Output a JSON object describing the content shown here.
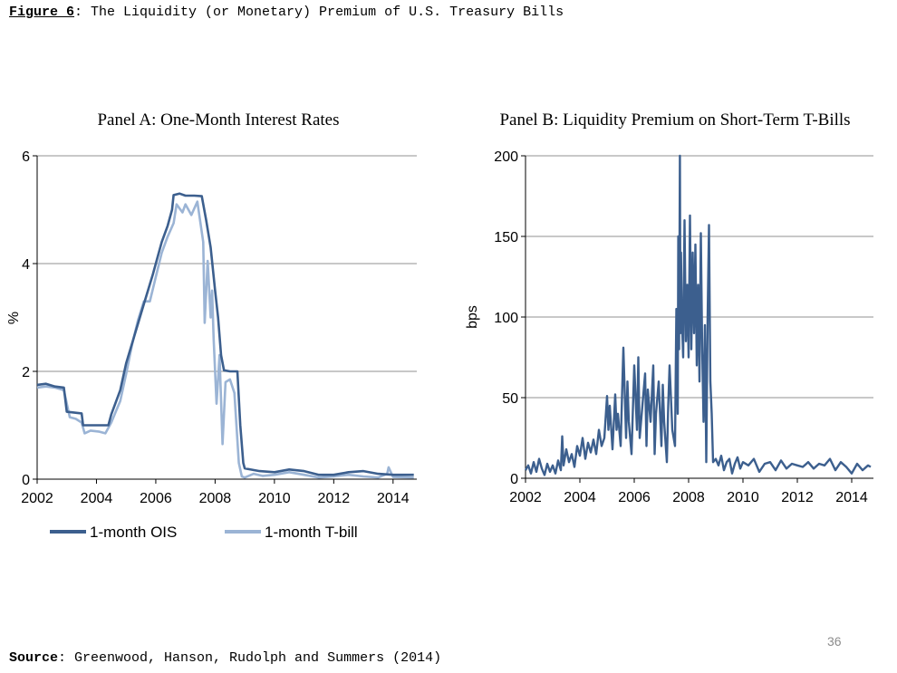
{
  "figure": {
    "label": "Figure 6",
    "title": ": The Liquidity (or Monetary) Premium of U.S. Treasury Bills"
  },
  "source": {
    "label": "Source",
    "text": ": Greenwood, Hanson, Rudolph and Summers (2014)"
  },
  "page_number": "36",
  "colors": {
    "ois": "#3c5f8e",
    "tbill": "#9bb4d5",
    "premium": "#3c5f8e",
    "grid": "#a6a6a6"
  },
  "chart_data": [
    {
      "type": "line",
      "title": "Panel A: One-Month Interest Rates",
      "xlabel": "",
      "ylabel": "%",
      "xlim": [
        2002,
        2014.8
      ],
      "ylim": [
        0,
        6
      ],
      "xticks": [
        "2002",
        "2004",
        "2006",
        "2008",
        "2010",
        "2012",
        "2014"
      ],
      "yticks": [
        "0",
        "2",
        "4",
        "6"
      ],
      "grid": true,
      "legend": "bottom",
      "series": [
        {
          "name": "1-month OIS",
          "x": [
            2002.0,
            2002.3,
            2002.6,
            2002.9,
            2003.0,
            2003.5,
            2003.55,
            2004.4,
            2004.5,
            2004.8,
            2005.0,
            2005.3,
            2005.6,
            2005.9,
            2006.2,
            2006.4,
            2006.55,
            2006.6,
            2006.8,
            2007.0,
            2007.3,
            2007.55,
            2007.7,
            2007.85,
            2008.0,
            2008.1,
            2008.2,
            2008.3,
            2008.5,
            2008.75,
            2008.85,
            2008.95,
            2009.0,
            2009.5,
            2010.0,
            2010.5,
            2011.0,
            2011.5,
            2012.0,
            2012.5,
            2013.0,
            2013.5,
            2014.0,
            2014.7
          ],
          "y": [
            1.75,
            1.77,
            1.72,
            1.7,
            1.25,
            1.22,
            1.0,
            1.0,
            1.2,
            1.65,
            2.15,
            2.7,
            3.25,
            3.8,
            4.4,
            4.7,
            5.0,
            5.27,
            5.3,
            5.26,
            5.26,
            5.25,
            4.8,
            4.3,
            3.5,
            3.0,
            2.3,
            2.02,
            2.0,
            2.0,
            1.0,
            0.3,
            0.2,
            0.15,
            0.13,
            0.18,
            0.15,
            0.08,
            0.08,
            0.13,
            0.15,
            0.1,
            0.08,
            0.08
          ]
        },
        {
          "name": "1-month T-bill",
          "x": [
            2002.0,
            2002.3,
            2002.6,
            2002.9,
            2003.1,
            2003.3,
            2003.5,
            2003.6,
            2003.8,
            2004.1,
            2004.3,
            2004.5,
            2004.8,
            2005.0,
            2005.2,
            2005.4,
            2005.6,
            2005.8,
            2006.0,
            2006.2,
            2006.4,
            2006.6,
            2006.7,
            2006.9,
            2007.0,
            2007.2,
            2007.4,
            2007.6,
            2007.65,
            2007.75,
            2007.85,
            2007.9,
            2007.95,
            2008.05,
            2008.15,
            2008.25,
            2008.35,
            2008.5,
            2008.65,
            2008.8,
            2008.9,
            2009.0,
            2009.3,
            2009.6,
            2010.0,
            2010.5,
            2011.0,
            2011.5,
            2012.0,
            2012.5,
            2013.0,
            2013.5,
            2013.8,
            2013.85,
            2014.0,
            2014.7
          ],
          "y": [
            1.7,
            1.72,
            1.7,
            1.65,
            1.15,
            1.12,
            1.05,
            0.85,
            0.9,
            0.88,
            0.85,
            1.05,
            1.45,
            1.95,
            2.5,
            2.95,
            3.3,
            3.3,
            3.75,
            4.2,
            4.5,
            4.75,
            5.1,
            4.95,
            5.1,
            4.9,
            5.15,
            4.4,
            2.9,
            4.05,
            3.0,
            3.5,
            2.6,
            1.4,
            2.3,
            0.65,
            1.8,
            1.85,
            1.6,
            0.3,
            0.05,
            0.03,
            0.1,
            0.06,
            0.08,
            0.13,
            0.08,
            0.03,
            0.05,
            0.08,
            0.05,
            0.03,
            0.1,
            0.22,
            0.04,
            0.03
          ]
        }
      ]
    },
    {
      "type": "line",
      "title": "Panel B: Liquidity Premium on Short-Term T-Bills",
      "xlabel": "",
      "ylabel": "bps",
      "xlim": [
        2002,
        2014.8
      ],
      "ylim": [
        0,
        200
      ],
      "xticks": [
        "2002",
        "2004",
        "2006",
        "2008",
        "2010",
        "2012",
        "2014"
      ],
      "yticks": [
        "0",
        "50",
        "100",
        "150",
        "200"
      ],
      "grid": true,
      "series": [
        {
          "name": "",
          "x": [
            2002.0,
            2002.1,
            2002.2,
            2002.3,
            2002.4,
            2002.5,
            2002.6,
            2002.7,
            2002.8,
            2002.9,
            2003.0,
            2003.1,
            2003.2,
            2003.3,
            2003.35,
            2003.4,
            2003.5,
            2003.6,
            2003.7,
            2003.8,
            2003.9,
            2004.0,
            2004.1,
            2004.2,
            2004.3,
            2004.4,
            2004.5,
            2004.6,
            2004.7,
            2004.8,
            2004.9,
            2005.0,
            2005.05,
            2005.1,
            2005.2,
            2005.3,
            2005.35,
            2005.4,
            2005.5,
            2005.6,
            2005.7,
            2005.75,
            2005.8,
            2005.9,
            2006.0,
            2006.1,
            2006.15,
            2006.2,
            2006.3,
            2006.4,
            2006.45,
            2006.5,
            2006.6,
            2006.7,
            2006.75,
            2006.8,
            2006.9,
            2007.0,
            2007.05,
            2007.1,
            2007.2,
            2007.25,
            2007.3,
            2007.4,
            2007.5,
            2007.55,
            2007.6,
            2007.62,
            2007.65,
            2007.68,
            2007.7,
            2007.72,
            2007.75,
            2007.8,
            2007.85,
            2007.9,
            2007.95,
            2008.0,
            2008.05,
            2008.1,
            2008.15,
            2008.2,
            2008.25,
            2008.3,
            2008.35,
            2008.4,
            2008.45,
            2008.5,
            2008.55,
            2008.6,
            2008.65,
            2008.7,
            2008.75,
            2008.8,
            2008.85,
            2008.9,
            2009.0,
            2009.1,
            2009.2,
            2009.3,
            2009.4,
            2009.5,
            2009.6,
            2009.7,
            2009.8,
            2009.9,
            2010.0,
            2010.2,
            2010.4,
            2010.6,
            2010.8,
            2011.0,
            2011.2,
            2011.4,
            2011.6,
            2011.8,
            2012.0,
            2012.2,
            2012.4,
            2012.6,
            2012.8,
            2013.0,
            2013.2,
            2013.4,
            2013.6,
            2013.8,
            2014.0,
            2014.2,
            2014.4,
            2014.6,
            2014.7
          ],
          "y": [
            5,
            8,
            3,
            10,
            4,
            12,
            6,
            2,
            9,
            4,
            8,
            3,
            11,
            5,
            26,
            8,
            18,
            10,
            15,
            7,
            20,
            14,
            25,
            12,
            22,
            16,
            24,
            15,
            30,
            20,
            25,
            51,
            30,
            45,
            18,
            52,
            30,
            40,
            20,
            81,
            25,
            60,
            35,
            15,
            70,
            30,
            75,
            25,
            45,
            65,
            20,
            55,
            35,
            70,
            15,
            40,
            60,
            20,
            58,
            35,
            10,
            45,
            70,
            30,
            20,
            105,
            40,
            150,
            80,
            200,
            90,
            140,
            100,
            75,
            160,
            85,
            120,
            75,
            163,
            80,
            140,
            90,
            145,
            70,
            120,
            60,
            152,
            80,
            35,
            95,
            10,
            100,
            157,
            60,
            40,
            10,
            12,
            8,
            14,
            5,
            10,
            12,
            3,
            9,
            13,
            6,
            10,
            8,
            12,
            4,
            9,
            10,
            5,
            11,
            6,
            9,
            8,
            7,
            10,
            6,
            9,
            8,
            12,
            5,
            10,
            7,
            3,
            9,
            5,
            8,
            7
          ]
        }
      ]
    }
  ]
}
